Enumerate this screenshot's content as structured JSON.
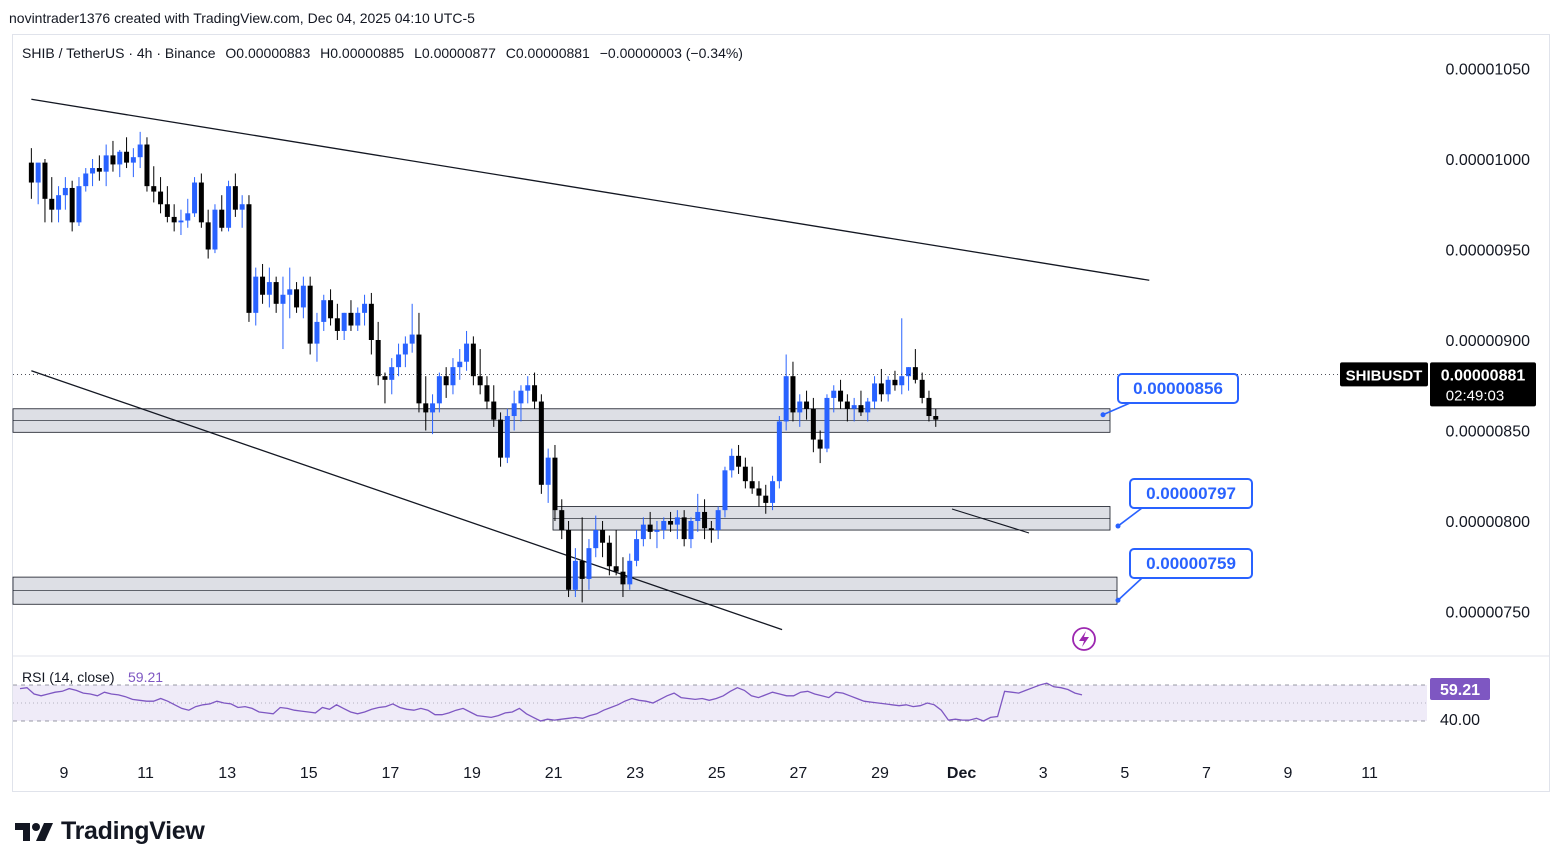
{
  "header": {
    "caption": "novintrader1376 created with TradingView.com, Dec 04, 2025 04:10 UTC-5",
    "symbol_line": "SHIB / TetherUS · 4h · Binance",
    "open": "O0.00000883",
    "high": "H0.00000885",
    "low": "L0.00000877",
    "close": "C0.00000881",
    "change": "−0.00000003 (−0.34%)"
  },
  "price_tag": {
    "symbol": "SHIBUSDT",
    "price": "0.00000881",
    "countdown": "02:49:03"
  },
  "rsi": {
    "label": "RSI (14, close)",
    "value": "59.21",
    "level_label": "40.00",
    "upper": 70,
    "lower": 30,
    "values": [
      66,
      67,
      60,
      58,
      60,
      62,
      63,
      66,
      64,
      61,
      60,
      58,
      62,
      60,
      59,
      57,
      54,
      53,
      52,
      52,
      55,
      52,
      48,
      44,
      42,
      46,
      48,
      49,
      52,
      50,
      49,
      45,
      46,
      44,
      40,
      39,
      38,
      45,
      44,
      42,
      41,
      40,
      39,
      45,
      43,
      48,
      44,
      40,
      38,
      40,
      43,
      45,
      46,
      49,
      45,
      43,
      42,
      44,
      42,
      37,
      37,
      39,
      42,
      44,
      40,
      36,
      35,
      34,
      36,
      39,
      40,
      44,
      38,
      34,
      30,
      32,
      31,
      32,
      33,
      34,
      33,
      36,
      38,
      42,
      45,
      48,
      52,
      55,
      53,
      52,
      50,
      54,
      58,
      61,
      56,
      55,
      54,
      55,
      53,
      55,
      58,
      63,
      67,
      64,
      58,
      56,
      59,
      62,
      60,
      58,
      58,
      62,
      63,
      60,
      58,
      56,
      62,
      61,
      58,
      55,
      52,
      51,
      50,
      49,
      48,
      47,
      48,
      46,
      47,
      50,
      48,
      42,
      31,
      32,
      31,
      31,
      33,
      30,
      34,
      35,
      63,
      62,
      61,
      64,
      67,
      70,
      72,
      68,
      67,
      65,
      61,
      59
    ]
  },
  "chart_data": {
    "type": "candlestick",
    "title": "SHIB / TetherUS · 4h · Binance",
    "y_axis": {
      "min": 7.2e-06,
      "max": 1.08e-05,
      "ticks": [
        "0.00001050",
        "0.00001000",
        "0.00000950",
        "0.00000900",
        "0.00000850",
        "0.00000800",
        "0.00000750"
      ],
      "tick_values": [
        1.05e-05,
        1e-05,
        9.5e-06,
        9e-06,
        8.5e-06,
        8e-06,
        7.5e-06
      ]
    },
    "x_axis": {
      "labels": [
        "9",
        "11",
        "13",
        "15",
        "17",
        "19",
        "21",
        "23",
        "25",
        "27",
        "29",
        "Dec",
        "3",
        "5",
        "7",
        "9",
        "11"
      ],
      "label_days": [
        9,
        11,
        13,
        15,
        17,
        19,
        21,
        23,
        25,
        27,
        29,
        31,
        33,
        35,
        37,
        39,
        41
      ],
      "bars_per_day": 6,
      "first_bar_day": 8.2
    },
    "current_price": 8.81e-06,
    "series": [
      {
        "name": "SHIB / TetherUS",
        "ohlc": [
          [
            9.98e-06,
            1.006e-05,
            9.78e-06,
            9.87e-06
          ],
          [
            9.87e-06,
            9.97e-06,
            9.75e-06,
            9.98e-06
          ],
          [
            9.98e-06,
            1e-05,
            9.65e-06,
            9.78e-06
          ],
          [
            9.78e-06,
            9.9e-06,
            9.65e-06,
            9.72e-06
          ],
          [
            9.72e-06,
            9.85e-06,
            9.65e-06,
            9.8e-06
          ],
          [
            9.8e-06,
            9.9e-06,
            9.72e-06,
            9.84e-06
          ],
          [
            9.84e-06,
            9.88e-06,
            9.6e-06,
            9.65e-06
          ],
          [
            9.65e-06,
            9.9e-06,
            9.63e-06,
            9.85e-06
          ],
          [
            9.85e-06,
            9.95e-06,
            9.82e-06,
            9.92e-06
          ],
          [
            9.92e-06,
            1e-05,
            9.85e-06,
            9.95e-06
          ],
          [
            9.95e-06,
            1.002e-05,
            9.88e-06,
            9.93e-06
          ],
          [
            9.93e-06,
            1.008e-05,
            9.85e-06,
            1.002e-05
          ],
          [
            1.002e-05,
            1.01e-05,
            9.93e-06,
            9.97e-06
          ],
          [
            9.97e-06,
            1.005e-05,
            9.9e-06,
            1.004e-05
          ],
          [
            1.004e-05,
            1.012e-05,
            9.95e-06,
            9.98e-06
          ],
          [
            9.98e-06,
            1.006e-05,
            9.9e-06,
            1.001e-05
          ],
          [
            1.001e-05,
            1.015e-05,
            9.95e-06,
            1.008e-05
          ],
          [
            1.008e-05,
            1.012e-05,
            9.82e-06,
            9.85e-06
          ],
          [
            9.85e-06,
            9.96e-06,
            9.76e-06,
            9.82e-06
          ],
          [
            9.82e-06,
            9.9e-06,
            9.7e-06,
            9.75e-06
          ],
          [
            9.75e-06,
            9.85e-06,
            9.65e-06,
            9.68e-06
          ],
          [
            9.68e-06,
            9.75e-06,
            9.6e-06,
            9.65e-06
          ],
          [
            9.65e-06,
            9.72e-06,
            9.58e-06,
            9.66e-06
          ],
          [
            9.66e-06,
            9.78e-06,
            9.62e-06,
            9.7e-06
          ],
          [
            9.7e-06,
            9.9e-06,
            9.68e-06,
            9.87e-06
          ],
          [
            9.87e-06,
            9.92e-06,
            9.62e-06,
            9.65e-06
          ],
          [
            9.65e-06,
            9.72e-06,
            9.45e-06,
            9.5e-06
          ],
          [
            9.5e-06,
            9.75e-06,
            9.48e-06,
            9.72e-06
          ],
          [
            9.72e-06,
            9.8e-06,
            9.6e-06,
            9.62e-06
          ],
          [
            9.62e-06,
            9.88e-06,
            9.6e-06,
            9.85e-06
          ],
          [
            9.85e-06,
            9.92e-06,
            9.68e-06,
            9.72e-06
          ],
          [
            9.72e-06,
            9.8e-06,
            9.62e-06,
            9.75e-06
          ],
          [
            9.75e-06,
            9.8e-06,
            9.1e-06,
            9.15e-06
          ],
          [
            9.15e-06,
            9.4e-06,
            9.08e-06,
            9.35e-06
          ],
          [
            9.35e-06,
            9.42e-06,
            9.2e-06,
            9.25e-06
          ],
          [
            9.25e-06,
            9.4e-06,
            9.18e-06,
            9.32e-06
          ],
          [
            9.32e-06,
            9.35e-06,
            9.15e-06,
            9.2e-06
          ],
          [
            9.2e-06,
            9.35e-06,
            8.95e-06,
            9.25e-06
          ],
          [
            9.25e-06,
            9.4e-06,
            9.12e-06,
            9.28e-06
          ],
          [
            9.28e-06,
            9.32e-06,
            9.15e-06,
            9.18e-06
          ],
          [
            9.18e-06,
            9.35e-06,
            9.12e-06,
            9.3e-06
          ],
          [
            9.3e-06,
            9.35e-06,
            8.92e-06,
            8.98e-06
          ],
          [
            8.98e-06,
            9.15e-06,
            8.88e-06,
            9.1e-06
          ],
          [
            9.1e-06,
            9.25e-06,
            9.05e-06,
            9.22e-06
          ],
          [
            9.22e-06,
            9.28e-06,
            9.08e-06,
            9.12e-06
          ],
          [
            9.12e-06,
            9.2e-06,
            9e-06,
            9.05e-06
          ],
          [
            9.05e-06,
            9.15e-06,
            9e-06,
            9.15e-06
          ],
          [
            9.15e-06,
            9.22e-06,
            9.05e-06,
            9.08e-06
          ],
          [
            9.08e-06,
            9.18e-06,
            9.05e-06,
            9.15e-06
          ],
          [
            9.15e-06,
            9.25e-06,
            9.08e-06,
            9.2e-06
          ],
          [
            9.2e-06,
            9.26e-06,
            8.92e-06,
            9e-06
          ],
          [
            9e-06,
            9.1e-06,
            8.75e-06,
            8.8e-06
          ],
          [
            8.8e-06,
            8.82e-06,
            8.65e-06,
            8.78e-06
          ],
          [
            8.78e-06,
            8.9e-06,
            8.7e-06,
            8.85e-06
          ],
          [
            8.85e-06,
            8.98e-06,
            8.8e-06,
            8.92e-06
          ],
          [
            8.92e-06,
            9.02e-06,
            8.85e-06,
            8.98e-06
          ],
          [
            8.98e-06,
            9.2e-06,
            8.93e-06,
            9.03e-06
          ],
          [
            9.03e-06,
            9.15e-06,
            8.6e-06,
            8.65e-06
          ],
          [
            8.65e-06,
            8.8e-06,
            8.5e-06,
            8.6e-06
          ],
          [
            8.6e-06,
            8.7e-06,
            8.48e-06,
            8.65e-06
          ],
          [
            8.65e-06,
            8.82e-06,
            8.6e-06,
            8.8e-06
          ],
          [
            8.8e-06,
            8.85e-06,
            8.68e-06,
            8.75e-06
          ],
          [
            8.75e-06,
            8.9e-06,
            8.7e-06,
            8.85e-06
          ],
          [
            8.85e-06,
            8.95e-06,
            8.78e-06,
            8.88e-06
          ],
          [
            8.88e-06,
            9.05e-06,
            8.83e-06,
            8.98e-06
          ],
          [
            8.98e-06,
            9.02e-06,
            8.75e-06,
            8.8e-06
          ],
          [
            8.8e-06,
            8.95e-06,
            8.7e-06,
            8.75e-06
          ],
          [
            8.75e-06,
            8.8e-06,
            8.62e-06,
            8.66e-06
          ],
          [
            8.66e-06,
            8.75e-06,
            8.52e-06,
            8.56e-06
          ],
          [
            8.56e-06,
            8.6e-06,
            8.3e-06,
            8.35e-06
          ],
          [
            8.35e-06,
            8.62e-06,
            8.32e-06,
            8.58e-06
          ],
          [
            8.58e-06,
            8.72e-06,
            8.5e-06,
            8.65e-06
          ],
          [
            8.65e-06,
            8.75e-06,
            8.55e-06,
            8.72e-06
          ],
          [
            8.72e-06,
            8.8e-06,
            8.65e-06,
            8.75e-06
          ],
          [
            8.75e-06,
            8.82e-06,
            8.62e-06,
            8.66e-06
          ],
          [
            8.66e-06,
            8.7e-06,
            8.15e-06,
            8.2e-06
          ],
          [
            8.2e-06,
            8.4e-06,
            8.1e-06,
            8.35e-06
          ],
          [
            8.35e-06,
            8.42e-06,
            8e-06,
            8.06e-06
          ],
          [
            8.06e-06,
            8.12e-06,
            7.9e-06,
            7.95e-06
          ],
          [
            7.95e-06,
            8e-06,
            7.58e-06,
            7.62e-06
          ],
          [
            7.62e-06,
            7.85e-06,
            7.58e-06,
            7.78e-06
          ],
          [
            7.78e-06,
            8.02e-06,
            7.55e-06,
            7.68e-06
          ],
          [
            7.68e-06,
            7.9e-06,
            7.62e-06,
            7.85e-06
          ],
          [
            7.85e-06,
            8.03e-06,
            7.8e-06,
            7.95e-06
          ],
          [
            7.95e-06,
            8e-06,
            7.8e-06,
            7.88e-06
          ],
          [
            7.88e-06,
            7.92e-06,
            7.7e-06,
            7.75e-06
          ],
          [
            7.75e-06,
            7.95e-06,
            7.7e-06,
            7.72e-06
          ],
          [
            7.72e-06,
            7.8e-06,
            7.58e-06,
            7.65e-06
          ],
          [
            7.65e-06,
            7.82e-06,
            7.62e-06,
            7.78e-06
          ],
          [
            7.78e-06,
            7.95e-06,
            7.75e-06,
            7.9e-06
          ],
          [
            7.9e-06,
            8.02e-06,
            7.86e-06,
            7.98e-06
          ],
          [
            7.98e-06,
            8.05e-06,
            7.9e-06,
            7.94e-06
          ],
          [
            7.94e-06,
            8e-06,
            7.85e-06,
            7.95e-06
          ],
          [
            7.95e-06,
            8.02e-06,
            7.9e-06,
            8e-06
          ],
          [
            8e-06,
            8.05e-06,
            7.94e-06,
            7.98e-06
          ],
          [
            7.98e-06,
            8.06e-06,
            7.9e-06,
            8.02e-06
          ],
          [
            8.02e-06,
            8.06e-06,
            7.86e-06,
            7.9e-06
          ],
          [
            7.9e-06,
            8.02e-06,
            7.85e-06,
            8e-06
          ],
          [
            8e-06,
            8.15e-06,
            7.94e-06,
            8.05e-06
          ],
          [
            8.05e-06,
            8.12e-06,
            7.9e-06,
            7.96e-06
          ],
          [
            7.96e-06,
            8e-06,
            7.88e-06,
            7.95e-06
          ],
          [
            7.95e-06,
            8.08e-06,
            7.9e-06,
            8.06e-06
          ],
          [
            8.06e-06,
            8.3e-06,
            8.02e-06,
            8.28e-06
          ],
          [
            8.28e-06,
            8.4e-06,
            8.24e-06,
            8.36e-06
          ],
          [
            8.36e-06,
            8.42e-06,
            8.26e-06,
            8.3e-06
          ],
          [
            8.3e-06,
            8.35e-06,
            8.18e-06,
            8.22e-06
          ],
          [
            8.22e-06,
            8.3e-06,
            8.15e-06,
            8.18e-06
          ],
          [
            8.18e-06,
            8.22e-06,
            8.08e-06,
            8.14e-06
          ],
          [
            8.14e-06,
            8.2e-06,
            8.04e-06,
            8.1e-06
          ],
          [
            8.1e-06,
            8.25e-06,
            8.06e-06,
            8.22e-06
          ],
          [
            8.22e-06,
            8.58e-06,
            8.18e-06,
            8.55e-06
          ],
          [
            8.55e-06,
            8.92e-06,
            8.5e-06,
            8.8e-06
          ],
          [
            8.8e-06,
            8.88e-06,
            8.55e-06,
            8.6e-06
          ],
          [
            8.6e-06,
            8.7e-06,
            8.52e-06,
            8.66e-06
          ],
          [
            8.66e-06,
            8.72e-06,
            8.56e-06,
            8.62e-06
          ],
          [
            8.62e-06,
            8.68e-06,
            8.38e-06,
            8.45e-06
          ],
          [
            8.45e-06,
            8.5e-06,
            8.32e-06,
            8.4e-06
          ],
          [
            8.4e-06,
            8.7e-06,
            8.38e-06,
            8.68e-06
          ],
          [
            8.68e-06,
            8.75e-06,
            8.6e-06,
            8.72e-06
          ],
          [
            8.72e-06,
            8.78e-06,
            8.62e-06,
            8.66e-06
          ],
          [
            8.66e-06,
            8.7e-06,
            8.55e-06,
            8.62e-06
          ],
          [
            8.62e-06,
            8.68e-06,
            8.55e-06,
            8.64e-06
          ],
          [
            8.64e-06,
            8.72e-06,
            8.58e-06,
            8.6e-06
          ],
          [
            8.6e-06,
            8.68e-06,
            8.55e-06,
            8.66e-06
          ],
          [
            8.66e-06,
            8.8e-06,
            8.62e-06,
            8.76e-06
          ],
          [
            8.76e-06,
            8.84e-06,
            8.66e-06,
            8.7e-06
          ],
          [
            8.7e-06,
            8.8e-06,
            8.66e-06,
            8.78e-06
          ],
          [
            8.78e-06,
            8.83e-06,
            8.72e-06,
            8.75e-06
          ],
          [
            8.75e-06,
            9.12e-06,
            8.7e-06,
            8.8e-06
          ],
          [
            8.8e-06,
            8.85e-06,
            8.72e-06,
            8.85e-06
          ],
          [
            8.85e-06,
            8.95e-06,
            8.76e-06,
            8.78e-06
          ],
          [
            8.78e-06,
            8.82e-06,
            8.65e-06,
            8.68e-06
          ],
          [
            8.68e-06,
            8.72e-06,
            8.55e-06,
            8.58e-06
          ],
          [
            8.58e-06,
            8.62e-06,
            8.52e-06,
            8.56e-06
          ]
        ]
      }
    ],
    "support_zones": [
      {
        "label": "0.00000856",
        "top": 8.62e-06,
        "bottom": 8.49e-06
      },
      {
        "label": "0.00000797",
        "top": 8.08e-06,
        "bottom": 7.95e-06
      },
      {
        "label": "0.00000759",
        "top": 7.69e-06,
        "bottom": 7.54e-06
      }
    ],
    "trendlines": [
      {
        "name": "upper-channel",
        "from": [
          8.2,
          1.033e-05
        ],
        "to": [
          35.6,
          9.33e-06
        ]
      },
      {
        "name": "lower-channel",
        "from": [
          8.2,
          8.83e-06
        ],
        "to": [
          26.6,
          7.4e-06
        ]
      }
    ],
    "grid": false,
    "legend": "top-left"
  },
  "colors": {
    "up": "#2962ff",
    "down": "#000000",
    "zone_fill": "#d1d4dc",
    "callout": "#2962ff",
    "rsi_fill": "#7e57c2",
    "rsi_line": "#7e57c2",
    "rsi_badge": "#7e57c2",
    "price_tag_bg": "#000000"
  },
  "footer": {
    "brand": "TradingView"
  }
}
